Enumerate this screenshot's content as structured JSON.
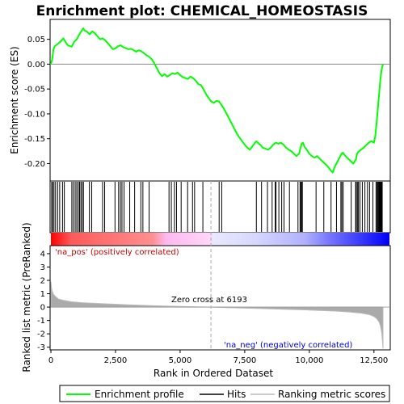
{
  "chart_data": {
    "type": "line",
    "title": "Enrichment plot: CHEMICAL_HOMEOSTASIS",
    "top_panel": {
      "ylabel": "Enrichment score (ES)",
      "ylim": [
        -0.235,
        0.09
      ],
      "yticks": [
        "0.05",
        "0.00",
        "-0.05",
        "-0.10",
        "-0.15",
        "-0.20"
      ],
      "series": [
        {
          "name": "Enrichment profile",
          "color": "#00ff00",
          "x": [
            0,
            50,
            100,
            150,
            200,
            300,
            400,
            480,
            560,
            650,
            800,
            900,
            1000,
            1100,
            1200,
            1250,
            1300,
            1400,
            1500,
            1600,
            1700,
            1800,
            1900,
            2000,
            2100,
            2200,
            2300,
            2400,
            2500,
            2600,
            2700,
            2800,
            2900,
            3000,
            3100,
            3200,
            3300,
            3400,
            3500,
            3600,
            3700,
            3800,
            3900,
            4000,
            4100,
            4200,
            4300,
            4400,
            4500,
            4600,
            4700,
            4800,
            4900,
            5000,
            5100,
            5200,
            5300,
            5400,
            5500,
            5600,
            5700,
            5800,
            5900,
            6000,
            6100,
            6200,
            6300,
            6400,
            6500,
            6600,
            6700,
            6800,
            6900,
            7000,
            7100,
            7200,
            7300,
            7400,
            7500,
            7600,
            7700,
            7800,
            7900,
            7950,
            8000,
            8100,
            8200,
            8300,
            8400,
            8500,
            8600,
            8700,
            8800,
            8900,
            9000,
            9100,
            9200,
            9300,
            9400,
            9500,
            9600,
            9700,
            9750,
            9800,
            9900,
            10000,
            10100,
            10200,
            10300,
            10400,
            10500,
            10600,
            10700,
            10800,
            10900,
            11000,
            11100,
            11200,
            11250,
            11300,
            11400,
            11500,
            11600,
            11700,
            11800,
            11850,
            11900,
            12000,
            12100,
            12200,
            12300,
            12400,
            12500,
            12550,
            12600,
            12650,
            12700,
            12750,
            12800,
            12850
          ],
          "y": [
            0.0,
            0.01,
            0.03,
            0.036,
            0.038,
            0.042,
            0.047,
            0.052,
            0.045,
            0.038,
            0.035,
            0.045,
            0.05,
            0.06,
            0.068,
            0.072,
            0.068,
            0.065,
            0.06,
            0.066,
            0.062,
            0.056,
            0.05,
            0.052,
            0.048,
            0.042,
            0.036,
            0.03,
            0.032,
            0.036,
            0.038,
            0.034,
            0.032,
            0.03,
            0.031,
            0.028,
            0.025,
            0.028,
            0.026,
            0.022,
            0.018,
            0.015,
            0.01,
            0.002,
            -0.008,
            -0.018,
            -0.024,
            -0.02,
            -0.025,
            -0.022,
            -0.018,
            -0.02,
            -0.017,
            -0.022,
            -0.026,
            -0.028,
            -0.03,
            -0.025,
            -0.028,
            -0.033,
            -0.04,
            -0.042,
            -0.05,
            -0.06,
            -0.068,
            -0.075,
            -0.078,
            -0.074,
            -0.075,
            -0.082,
            -0.09,
            -0.1,
            -0.11,
            -0.12,
            -0.13,
            -0.14,
            -0.148,
            -0.155,
            -0.162,
            -0.168,
            -0.172,
            -0.165,
            -0.158,
            -0.155,
            -0.158,
            -0.162,
            -0.168,
            -0.17,
            -0.172,
            -0.168,
            -0.162,
            -0.158,
            -0.16,
            -0.158,
            -0.162,
            -0.168,
            -0.172,
            -0.175,
            -0.18,
            -0.185,
            -0.18,
            -0.16,
            -0.158,
            -0.165,
            -0.172,
            -0.18,
            -0.185,
            -0.188,
            -0.185,
            -0.19,
            -0.195,
            -0.2,
            -0.205,
            -0.212,
            -0.218,
            -0.205,
            -0.195,
            -0.185,
            -0.18,
            -0.178,
            -0.185,
            -0.19,
            -0.195,
            -0.2,
            -0.192,
            -0.18,
            -0.176,
            -0.172,
            -0.168,
            -0.163,
            -0.158,
            -0.155,
            -0.158,
            -0.145,
            -0.12,
            -0.09,
            -0.06,
            -0.03,
            -0.01,
            0.0
          ]
        }
      ]
    },
    "hits_panel": {
      "legend_name": "Hits",
      "hit_positions": [
        30,
        70,
        120,
        180,
        260,
        340,
        450,
        520,
        810,
        870,
        940,
        1000,
        1060,
        1110,
        1160,
        1210,
        1260,
        1490,
        1580,
        2000,
        2080,
        2480,
        2620,
        2690,
        2750,
        2830,
        3050,
        3240,
        3480,
        3560,
        3800,
        4570,
        4660,
        4780,
        4860,
        5040,
        5290,
        5480,
        5560,
        5880,
        6510,
        6610,
        7950,
        8150,
        8380,
        8560,
        8680,
        8710,
        8820,
        8930,
        9020,
        9230,
        9560,
        9640,
        9670,
        9700,
        9730,
        10260,
        10560,
        10840,
        11050,
        11220,
        11260,
        11310,
        11620,
        11790,
        11820,
        11870,
        11900,
        11960,
        12050,
        12150,
        12250,
        12330,
        12460,
        12580,
        12620,
        12650,
        12680,
        12700,
        12720,
        12740,
        12760,
        12780,
        12800,
        12820
      ]
    },
    "metric_panel": {
      "ylabel": "Ranked list metric (PreRanked)",
      "ylim": [
        -3.2,
        4.6
      ],
      "yticks": [
        "4",
        "3",
        "2",
        "1",
        "0",
        "-1",
        "-2",
        "-3"
      ],
      "legend_name": "Ranking metric scores",
      "profile_x": [
        0,
        20,
        50,
        100,
        200,
        300,
        500,
        800,
        1200,
        2000,
        3000,
        4000,
        5000,
        6193,
        7000,
        8000,
        9000,
        10000,
        11000,
        11500,
        12000,
        12300,
        12500,
        12600,
        12700,
        12750,
        12800,
        12830,
        12850
      ],
      "profile_y": [
        1.9,
        1.5,
        1.2,
        0.95,
        0.75,
        0.6,
        0.5,
        0.4,
        0.33,
        0.25,
        0.17,
        0.1,
        0.05,
        0.0,
        -0.05,
        -0.1,
        -0.16,
        -0.22,
        -0.3,
        -0.36,
        -0.45,
        -0.55,
        -0.7,
        -0.85,
        -1.1,
        -1.4,
        -1.9,
        -2.6,
        -3.1
      ]
    },
    "xlabel": "Rank in Ordered Dataset",
    "xlim": [
      0,
      13100
    ],
    "xticks": [
      "0",
      "2,500",
      "5,000",
      "7,500",
      "10,000",
      "12,500"
    ],
    "xtick_values": [
      0,
      2500,
      5000,
      7500,
      10000,
      12500
    ],
    "zero_cross_value": 6193,
    "annotations": {
      "pos_label": "'na_pos' (positively correlated)",
      "neg_label": "'na_neg' (negatively correlated)",
      "zero_cross": "Zero cross at 6193"
    },
    "legend": {
      "items": [
        "Enrichment profile",
        "Hits",
        "Ranking metric scores"
      ],
      "placement": "bottom"
    },
    "colors": {
      "profile": "#00ff00",
      "hits": "#000000",
      "metric_line": "#bbbbbb",
      "metric_fill": "#aaaaaa",
      "pos_label": "#cc0000",
      "neg_label": "#0000cc",
      "heat_pos": "#ff0000",
      "heat_mid": "#ffffff",
      "heat_neg": "#0000ff"
    }
  }
}
